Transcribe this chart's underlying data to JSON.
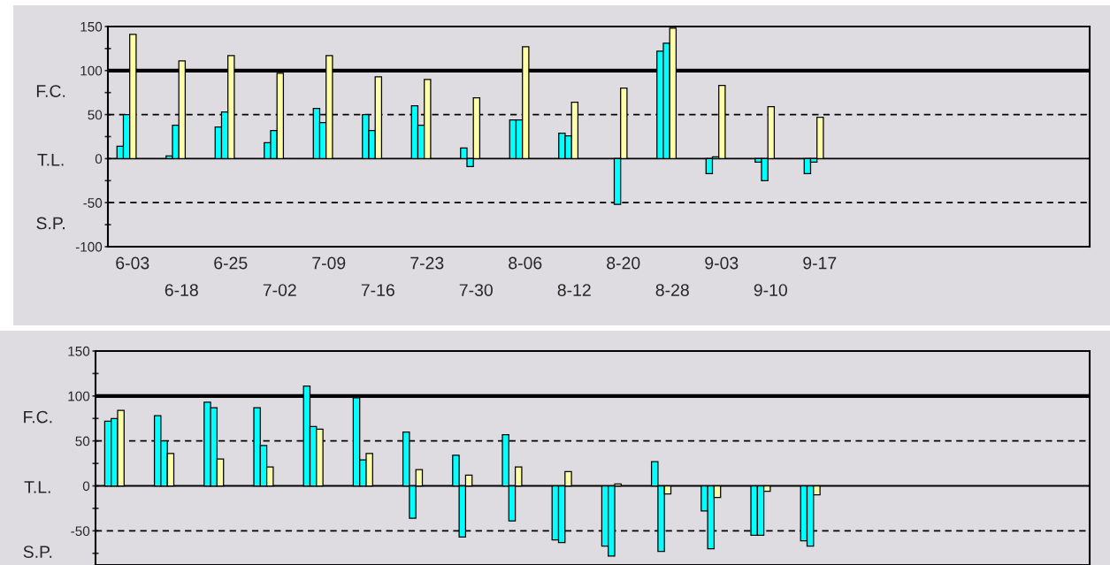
{
  "chart_data": [
    {
      "type": "bar",
      "categories": [
        "6-03",
        "6-18",
        "6-25",
        "7-02",
        "7-09",
        "7-16",
        "7-23",
        "7-30",
        "8-06",
        "8-12",
        "8-20",
        "8-28",
        "9-03",
        "9-10",
        "9-17",
        null,
        null,
        null,
        null,
        null
      ],
      "series": [
        {
          "color": "#00ffff",
          "values": [
            14,
            3,
            36,
            18,
            57,
            50,
            60,
            12,
            44,
            29,
            null,
            122,
            -17,
            -4,
            -17,
            null,
            null,
            null,
            null,
            null
          ]
        },
        {
          "color": "#00ffff",
          "values": [
            50,
            38,
            53,
            32,
            41,
            32,
            38,
            -9,
            44,
            26,
            -52,
            131,
            2,
            -25,
            -4,
            null,
            null,
            null,
            null,
            null
          ]
        },
        {
          "color": "#ffffa8",
          "values": [
            141,
            111,
            117,
            97,
            117,
            93,
            90,
            69,
            127,
            64,
            80,
            148,
            83,
            59,
            47,
            null,
            null,
            null,
            null,
            null
          ]
        }
      ],
      "ylim": [
        -100,
        150
      ],
      "yticks": [
        -100,
        {
          "value": -75,
          "label": null
        },
        -50,
        {
          "value": -25,
          "label": null
        },
        0,
        {
          "value": 25,
          "label": null
        },
        50,
        {
          "value": 75,
          "label": null
        },
        100,
        {
          "value": 125,
          "label": null
        },
        150
      ],
      "ref_lines": [
        {
          "axis": "y",
          "value": 100,
          "line_style": "solid",
          "color": "#000000"
        },
        {
          "axis": "y",
          "value": 50,
          "line_style": "dashed",
          "color": "#000000"
        },
        {
          "axis": "y",
          "value": 0,
          "line_style": "solid",
          "color": "#000000"
        },
        {
          "axis": "y",
          "value": -50,
          "line_style": "dashed",
          "color": "#000000"
        }
      ],
      "annotations": [
        "F.C.",
        "T.L.",
        "S.P."
      ],
      "grid": false
    },
    {
      "type": "bar",
      "categories": [
        null,
        null,
        null,
        null,
        null,
        null,
        null,
        null,
        null,
        null,
        null,
        null,
        null,
        null,
        null,
        null,
        null,
        null,
        null,
        null
      ],
      "series": [
        {
          "color": "#00ffff",
          "values": [
            72,
            78,
            93,
            87,
            111,
            98,
            60,
            34,
            57,
            -60,
            -67,
            27,
            -28,
            -55,
            -61,
            null,
            null,
            null,
            null,
            null
          ]
        },
        {
          "color": "#00ffff",
          "values": [
            75,
            50,
            87,
            45,
            66,
            29,
            -36,
            -57,
            -39,
            -63,
            -78,
            -73,
            -70,
            -55,
            -67,
            null,
            null,
            null,
            null,
            null
          ]
        },
        {
          "color": "#ffffa8",
          "values": [
            84,
            36,
            30,
            21,
            63,
            36,
            18,
            12,
            21,
            16,
            2,
            -9,
            -13,
            -6,
            -10,
            null,
            null,
            null,
            null,
            null
          ]
        }
      ],
      "ylim": [
        -88,
        150
      ],
      "yticks": [
        {
          "value": -75,
          "label": null
        },
        -50,
        {
          "value": -25,
          "label": null
        },
        0,
        {
          "value": 25,
          "label": null
        },
        50,
        {
          "value": 75,
          "label": null
        },
        100,
        {
          "value": 125,
          "label": null
        },
        150
      ],
      "ref_lines": [
        {
          "axis": "y",
          "value": 100,
          "line_style": "solid",
          "color": "#000000"
        },
        {
          "axis": "y",
          "value": 50,
          "line_style": "dashed",
          "color": "#000000"
        },
        {
          "axis": "y",
          "value": 0,
          "line_style": "solid",
          "color": "#000000"
        },
        {
          "axis": "y",
          "value": -50,
          "line_style": "dashed",
          "color": "#000000"
        }
      ],
      "annotations": [
        "F.C.",
        "T.L.",
        "S.P."
      ],
      "tick_labels": "y",
      "grid": false
    }
  ]
}
